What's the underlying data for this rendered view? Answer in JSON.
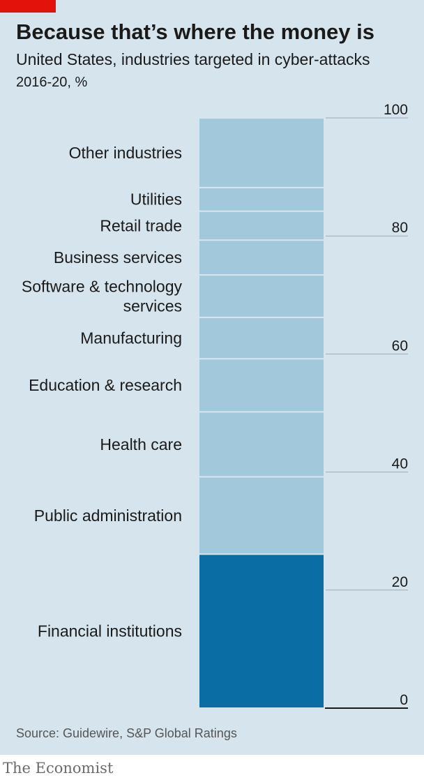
{
  "header": {
    "title": "Because that’s where the money is",
    "subtitle": "United States, industries targeted in cyber-attacks",
    "unit": "2016-20, %"
  },
  "footer": {
    "source": "Source: Guidewire, S&P Global Ratings",
    "brand": "The Economist"
  },
  "colors": {
    "accent": "#e3120b",
    "highlight": "#0a6ea4",
    "segment": "#a2c8dc",
    "background": "#d6e4ed"
  },
  "chart_data": {
    "type": "bar",
    "stacked": true,
    "title": "Because that’s where the money is",
    "subtitle": "United States, industries targeted in cyber-attacks",
    "ylabel": "2016-20, %",
    "ylim": [
      0,
      100
    ],
    "yticks": [
      0,
      20,
      40,
      60,
      80,
      100
    ],
    "grid": true,
    "segments": [
      {
        "label": "Financial institutions",
        "value": 26.1,
        "highlight": true
      },
      {
        "label": "Public administration",
        "value": 13.1
      },
      {
        "label": "Health care",
        "value": 11.0
      },
      {
        "label": "Education & research",
        "value": 9.0
      },
      {
        "label": "Manufacturing",
        "value": 7.0
      },
      {
        "label": "Software & technology services",
        "label_lines": [
          "Software & technology",
          "services"
        ],
        "value": 7.2
      },
      {
        "label": "Business services",
        "value": 5.9
      },
      {
        "label": "Retail trade",
        "value": 4.9
      },
      {
        "label": "Utilities",
        "value": 4.0
      },
      {
        "label": "Other industries",
        "value": 11.8
      }
    ]
  }
}
